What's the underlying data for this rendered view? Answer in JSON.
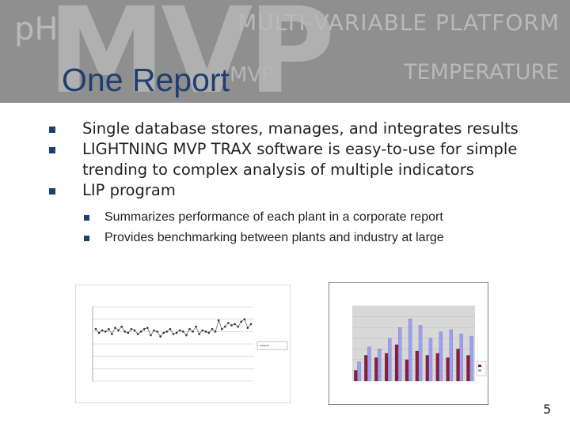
{
  "banner": {
    "watermark_ph": "pH",
    "watermark_mvp": "MVP",
    "watermark_mvp_small": "MVP",
    "watermark_multivariable": "MULTI-VARIABLE PLATFORM",
    "watermark_temperature": "TEMPERATURE"
  },
  "title": "One Report",
  "bullets": [
    "Single database stores, manages, and integrates results",
    "LIGHTNING MVP TRAX software is easy-to-use for simple trending to complex analysis of multiple indicators",
    "LIP program"
  ],
  "sub_bullets": [
    "Summarizes performance of each plant in a corporate report",
    "Provides benchmarking between plants and industry at large"
  ],
  "colors": {
    "title": "#1f3f6e",
    "bullet": "#1f3f6e",
    "banner": "#8f8f8f"
  },
  "chart_data": [
    {
      "type": "line",
      "y": [
        2.1,
        1.95,
        2.05,
        2.0,
        2.1,
        1.9,
        2.15,
        2.05,
        2.2,
        2.0,
        1.95,
        2.1,
        2.05,
        1.9,
        2.0,
        2.1,
        2.15,
        1.85,
        2.05,
        2.0,
        1.8,
        1.95,
        2.0,
        2.1,
        1.9,
        1.95,
        2.05,
        2.0,
        1.85,
        2.1,
        2.0,
        2.2,
        1.9,
        2.05,
        2.0,
        1.95,
        2.1,
        2.0,
        2.45,
        2.1,
        2.2,
        2.35,
        2.25,
        2.3,
        2.2,
        2.4,
        2.5,
        2.15,
        2.3
      ],
      "ylim": [
        0,
        3.0
      ],
      "yticks": [
        0,
        0.5,
        1.0,
        1.5,
        2.0,
        2.5,
        3.0
      ],
      "grid": true,
      "legend": "right"
    },
    {
      "type": "bar",
      "series_values": [
        [
          0.5,
          1.2,
          1.1,
          1.3,
          1.7,
          1.0,
          1.4,
          1.2,
          1.3,
          1.1,
          1.5,
          1.2
        ],
        [
          0.9,
          1.6,
          1.5,
          2.0,
          2.5,
          2.9,
          2.6,
          2.0,
          2.3,
          2.4,
          2.2,
          2.1
        ]
      ],
      "colors": [
        "#8a1c3c",
        "#9aa0f2"
      ],
      "ylim": [
        0,
        3.5
      ],
      "grid": true,
      "legend": "right"
    }
  ]
}
